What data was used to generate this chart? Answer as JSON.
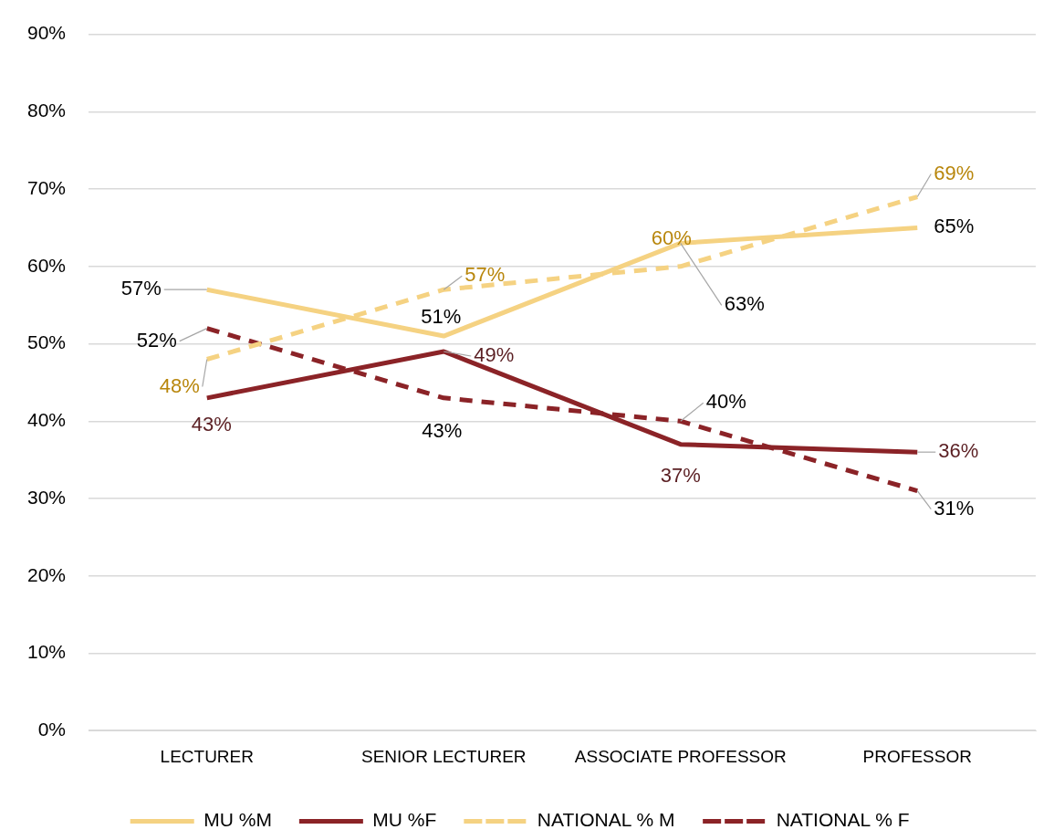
{
  "chart_data": {
    "type": "line",
    "categories": [
      "LECTURER",
      "SENIOR LECTURER",
      "ASSOCIATE PROFESSOR",
      "PROFESSOR"
    ],
    "series": [
      {
        "name": "MU %M",
        "color": "#f5d282",
        "values": [
          57,
          51,
          63,
          65
        ],
        "line_style": "solid"
      },
      {
        "name": "MU %F",
        "color": "#8b2327",
        "values": [
          43,
          49,
          37,
          36
        ],
        "line_style": "solid"
      },
      {
        "name": "NATIONAL % M",
        "color": "#f5d282",
        "values": [
          48,
          57,
          60,
          69
        ],
        "line_style": "dashed"
      },
      {
        "name": "NATIONAL % F",
        "color": "#8b2327",
        "values": [
          52,
          43,
          40,
          31
        ],
        "line_style": "dashed"
      }
    ],
    "ylim": [
      0,
      90
    ],
    "yticks": [
      {
        "value": 0,
        "label": "0%"
      },
      {
        "value": 10,
        "label": "10%"
      },
      {
        "value": 20,
        "label": "20%"
      },
      {
        "value": 30,
        "label": "30%"
      },
      {
        "value": 40,
        "label": "40%"
      },
      {
        "value": 50,
        "label": "50%"
      },
      {
        "value": 60,
        "label": "60%"
      },
      {
        "value": 70,
        "label": "70%"
      },
      {
        "value": 80,
        "label": "80%"
      },
      {
        "value": 90,
        "label": "90%"
      }
    ],
    "value_labels": [
      [
        "57%",
        "51%",
        "63%",
        "65%"
      ],
      [
        "43%",
        "49%",
        "37%",
        "36%"
      ],
      [
        "48%",
        "57%",
        "60%",
        "69%"
      ],
      [
        "52%",
        "43%",
        "40%",
        "31%"
      ]
    ],
    "grid": "y",
    "legend": "bottom",
    "marker": "none"
  }
}
